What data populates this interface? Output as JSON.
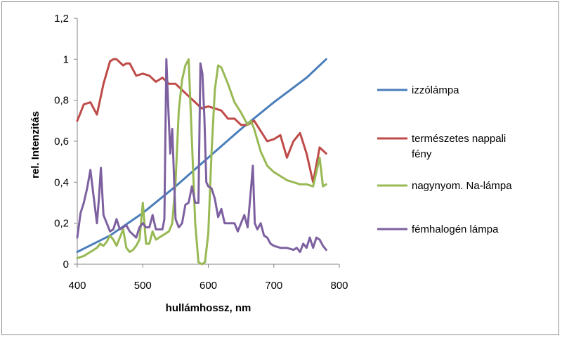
{
  "chart_data": {
    "type": "line",
    "xlabel": "hullámhossz, nm",
    "ylabel": "rel. Intenzitás",
    "xlim": [
      400,
      800
    ],
    "ylim": [
      0,
      1.2
    ],
    "xticks": [
      400,
      500,
      600,
      700,
      800
    ],
    "yticks": [
      0,
      0.2,
      0.4,
      0.6,
      0.8,
      1,
      1.2
    ],
    "xtick_labels": [
      "400",
      "500",
      "600",
      "700",
      "800"
    ],
    "ytick_labels": [
      "0",
      "0,2",
      "0,4",
      "0,6",
      "0,8",
      "1",
      "1,2"
    ],
    "grid": false,
    "legend_position": "right",
    "series": [
      {
        "name": "izzólámpa",
        "color": "#4a7ebb",
        "x": [
          400,
          450,
          500,
          550,
          600,
          650,
          700,
          750,
          780
        ],
        "y": [
          0.06,
          0.14,
          0.25,
          0.38,
          0.52,
          0.66,
          0.79,
          0.91,
          1.0
        ]
      },
      {
        "name": "természetes nappali fény",
        "color": "#be4b48",
        "x": [
          400,
          405,
          410,
          420,
          430,
          440,
          450,
          455,
          460,
          470,
          475,
          480,
          490,
          500,
          510,
          520,
          530,
          540,
          550,
          560,
          570,
          580,
          590,
          600,
          610,
          620,
          630,
          640,
          650,
          660,
          670,
          680,
          690,
          700,
          710,
          720,
          730,
          740,
          750,
          760,
          770,
          780
        ],
        "y": [
          0.7,
          0.74,
          0.78,
          0.79,
          0.73,
          0.88,
          0.99,
          1.0,
          1.0,
          0.97,
          0.98,
          0.98,
          0.92,
          0.93,
          0.92,
          0.89,
          0.91,
          0.88,
          0.88,
          0.85,
          0.82,
          0.79,
          0.76,
          0.77,
          0.76,
          0.75,
          0.71,
          0.71,
          0.68,
          0.68,
          0.7,
          0.65,
          0.6,
          0.61,
          0.63,
          0.52,
          0.6,
          0.64,
          0.54,
          0.4,
          0.57,
          0.54
        ]
      },
      {
        "name": "nagynyom. Na-lámpa",
        "color": "#98b954",
        "x": [
          400,
          410,
          420,
          430,
          435,
          440,
          445,
          450,
          455,
          460,
          465,
          470,
          475,
          480,
          485,
          490,
          495,
          500,
          505,
          510,
          515,
          520,
          530,
          540,
          545,
          550,
          555,
          560,
          565,
          570,
          575,
          580,
          585,
          590,
          595,
          600,
          605,
          610,
          615,
          620,
          630,
          640,
          650,
          660,
          665,
          670,
          680,
          690,
          700,
          710,
          720,
          730,
          740,
          750,
          760,
          765,
          770,
          775,
          780
        ],
        "y": [
          0.03,
          0.04,
          0.06,
          0.08,
          0.1,
          0.09,
          0.11,
          0.14,
          0.12,
          0.09,
          0.13,
          0.17,
          0.08,
          0.06,
          0.07,
          0.09,
          0.12,
          0.3,
          0.1,
          0.1,
          0.16,
          0.12,
          0.14,
          0.16,
          0.2,
          0.4,
          0.75,
          0.9,
          0.97,
          1.0,
          0.6,
          0.2,
          0.01,
          0.0,
          0.01,
          0.15,
          0.55,
          0.85,
          0.97,
          0.96,
          0.88,
          0.79,
          0.74,
          0.68,
          0.7,
          0.66,
          0.55,
          0.48,
          0.45,
          0.43,
          0.41,
          0.4,
          0.39,
          0.39,
          0.38,
          0.45,
          0.52,
          0.38,
          0.39
        ]
      },
      {
        "name": "fémhalogén lámpa",
        "color": "#7d60a0",
        "x": [
          400,
          405,
          410,
          415,
          420,
          425,
          430,
          433,
          436,
          440,
          445,
          450,
          455,
          460,
          465,
          470,
          475,
          480,
          490,
          495,
          500,
          505,
          510,
          515,
          520,
          525,
          530,
          533,
          536,
          539,
          542,
          545,
          550,
          555,
          560,
          565,
          570,
          575,
          580,
          585,
          588,
          591,
          594,
          597,
          600,
          605,
          610,
          615,
          620,
          625,
          630,
          635,
          640,
          645,
          650,
          655,
          660,
          665,
          668,
          671,
          675,
          680,
          685,
          690,
          695,
          700,
          710,
          720,
          730,
          735,
          740,
          745,
          750,
          755,
          760,
          765,
          770,
          775,
          780
        ],
        "y": [
          0.13,
          0.25,
          0.3,
          0.37,
          0.46,
          0.33,
          0.2,
          0.32,
          0.47,
          0.24,
          0.2,
          0.16,
          0.17,
          0.22,
          0.17,
          0.18,
          0.19,
          0.16,
          0.13,
          0.18,
          0.2,
          0.18,
          0.18,
          0.24,
          0.17,
          0.17,
          0.17,
          0.22,
          1.0,
          0.76,
          0.54,
          0.66,
          0.22,
          0.18,
          0.2,
          0.29,
          0.3,
          0.38,
          0.3,
          0.3,
          0.98,
          0.93,
          0.72,
          0.4,
          0.38,
          0.37,
          0.32,
          0.23,
          0.27,
          0.2,
          0.2,
          0.2,
          0.2,
          0.16,
          0.2,
          0.24,
          0.18,
          0.36,
          0.48,
          0.2,
          0.17,
          0.2,
          0.14,
          0.13,
          0.1,
          0.09,
          0.08,
          0.08,
          0.07,
          0.08,
          0.06,
          0.1,
          0.08,
          0.13,
          0.08,
          0.13,
          0.12,
          0.09,
          0.07
        ]
      }
    ]
  }
}
